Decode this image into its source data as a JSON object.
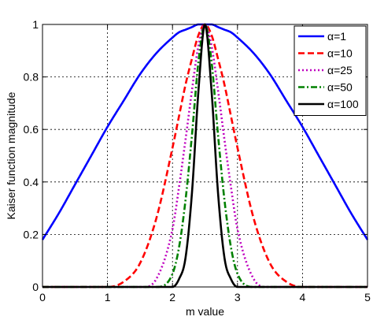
{
  "chart_data": {
    "type": "line",
    "title": "",
    "xlabel": "m value",
    "ylabel": "Kaiser function magnitude",
    "xlim": [
      0,
      5
    ],
    "ylim": [
      0,
      1
    ],
    "xticks": [
      "0",
      "1",
      "2",
      "3",
      "4",
      "5"
    ],
    "yticks": [
      "0",
      "0.2",
      "0.4",
      "0.6",
      "0.8",
      "1"
    ],
    "grid": true,
    "legend_position": "top-right",
    "x": [
      0,
      0.25,
      0.5,
      0.75,
      1,
      1.25,
      1.5,
      1.75,
      2,
      2.1,
      2.2,
      2.3,
      2.4,
      2.5,
      2.6,
      2.7,
      2.8,
      2.9,
      3,
      3.25,
      3.5,
      3.75,
      4,
      4.25,
      4.5,
      4.75,
      5
    ],
    "series": [
      {
        "name": "α=1",
        "color": "#0000ff",
        "dash": "solid",
        "values": [
          0.18,
          0.28,
          0.39,
          0.5,
          0.61,
          0.71,
          0.81,
          0.89,
          0.95,
          0.97,
          0.98,
          0.99,
          1.0,
          1.0,
          1.0,
          0.99,
          0.98,
          0.97,
          0.95,
          0.89,
          0.81,
          0.71,
          0.61,
          0.5,
          0.39,
          0.28,
          0.18
        ]
      },
      {
        "name": "α=10",
        "color": "#ff0000",
        "dash": "dashed",
        "values": [
          0.0,
          0.0,
          0.0,
          0.0,
          0.0,
          0.02,
          0.09,
          0.26,
          0.53,
          0.65,
          0.77,
          0.87,
          0.96,
          1.0,
          0.96,
          0.87,
          0.77,
          0.65,
          0.53,
          0.26,
          0.09,
          0.02,
          0.0,
          0.0,
          0.0,
          0.0,
          0.0
        ]
      },
      {
        "name": "α=25",
        "color": "#bf00bf",
        "dash": "dotted",
        "values": [
          0.0,
          0.0,
          0.0,
          0.0,
          0.0,
          0.0,
          0.0,
          0.03,
          0.22,
          0.38,
          0.56,
          0.75,
          0.92,
          1.0,
          0.92,
          0.75,
          0.56,
          0.38,
          0.22,
          0.03,
          0.0,
          0.0,
          0.0,
          0.0,
          0.0,
          0.0,
          0.0
        ]
      },
      {
        "name": "α=50",
        "color": "#008000",
        "dash": "dashdot",
        "values": [
          0.0,
          0.0,
          0.0,
          0.0,
          0.0,
          0.0,
          0.0,
          0.0,
          0.05,
          0.15,
          0.33,
          0.58,
          0.86,
          1.0,
          0.86,
          0.58,
          0.33,
          0.15,
          0.05,
          0.0,
          0.0,
          0.0,
          0.0,
          0.0,
          0.0,
          0.0,
          0.0
        ]
      },
      {
        "name": "α=100",
        "color": "#000000",
        "dash": "solid",
        "values": [
          0.0,
          0.0,
          0.0,
          0.0,
          0.0,
          0.0,
          0.0,
          0.0,
          0.0,
          0.03,
          0.11,
          0.36,
          0.75,
          1.0,
          0.75,
          0.36,
          0.11,
          0.03,
          0.0,
          0.0,
          0.0,
          0.0,
          0.0,
          0.0,
          0.0,
          0.0,
          0.0
        ]
      }
    ]
  }
}
